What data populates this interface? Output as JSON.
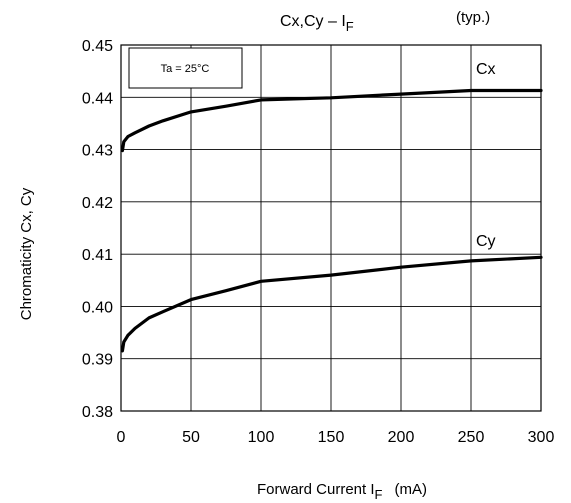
{
  "chart_data": {
    "type": "line",
    "title": "Cx,Cy – I",
    "title_subscript": "F",
    "subtitle": "(typ.)",
    "annotation": "Ta = 25°C",
    "xlabel": "Forward Current   I",
    "xlabel_subscript": "F",
    "xlabel_unit": "(mA)",
    "ylabel": "Chromaticity Cx, Cy",
    "xlim": [
      0,
      300
    ],
    "ylim": [
      0.38,
      0.45
    ],
    "xticks": [
      0,
      50,
      100,
      150,
      200,
      250,
      300
    ],
    "xtick_labels": [
      "0",
      "50",
      "100",
      "150",
      "200",
      "250",
      "300"
    ],
    "yticks": [
      0.38,
      0.39,
      0.4,
      0.41,
      0.42,
      0.43,
      0.44,
      0.45
    ],
    "ytick_labels": [
      "0.38",
      "0.39",
      "0.40",
      "0.41",
      "0.42",
      "0.43",
      "0.44",
      "0.45"
    ],
    "grid": true,
    "series": [
      {
        "name": "Cx",
        "x": [
          1,
          2,
          5,
          10,
          20,
          30,
          50,
          75,
          100,
          150,
          200,
          250,
          300
        ],
        "y": [
          0.4298,
          0.4315,
          0.4325,
          0.4332,
          0.4345,
          0.4355,
          0.4372,
          0.4383,
          0.4395,
          0.4399,
          0.4406,
          0.4413,
          0.4413
        ]
      },
      {
        "name": "Cy",
        "x": [
          1,
          2,
          5,
          10,
          20,
          30,
          50,
          75,
          100,
          150,
          200,
          250,
          300
        ],
        "y": [
          0.3915,
          0.3932,
          0.3945,
          0.3958,
          0.3978,
          0.399,
          0.4013,
          0.403,
          0.4048,
          0.406,
          0.4075,
          0.4087,
          0.4094
        ]
      }
    ],
    "colors": {
      "line": "#000000",
      "grid": "#000000",
      "background": "#ffffff"
    }
  }
}
